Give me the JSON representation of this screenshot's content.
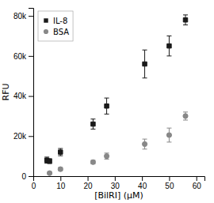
{
  "chart_data": {
    "type": "scatter",
    "x_label": "[BilRI] (μM)",
    "y_label": "RFU",
    "xlim": [
      0,
      63
    ],
    "ylim": [
      0,
      84000
    ],
    "xticks": [
      0,
      10,
      20,
      30,
      40,
      50,
      60
    ],
    "yticks": [
      0,
      {
        "value": 20000,
        "label": "20k"
      },
      {
        "value": 40000,
        "label": "40k"
      },
      {
        "value": 60000,
        "label": "60k"
      },
      {
        "value": 80000,
        "label": "80k"
      }
    ],
    "grid": false,
    "legend": "upper left",
    "series": [
      {
        "name": "IL-8",
        "color": "#1a1a1a",
        "marker": "square",
        "x": [
          5,
          6,
          10,
          22,
          27,
          41,
          50,
          56
        ],
        "values": [
          8000,
          7500,
          12000,
          26000,
          35000,
          56000,
          65000,
          78000
        ],
        "errors": [
          1500,
          1200,
          1800,
          2500,
          4000,
          7000,
          5000,
          2500
        ]
      },
      {
        "name": "BSA",
        "color": "#888888",
        "marker": "circle",
        "x": [
          6,
          10,
          22,
          27,
          41,
          50,
          56
        ],
        "values": [
          1500,
          3500,
          7000,
          10000,
          16000,
          20500,
          30000
        ],
        "errors": [
          500,
          800,
          900,
          1500,
          2500,
          3500,
          2000
        ]
      }
    ]
  }
}
